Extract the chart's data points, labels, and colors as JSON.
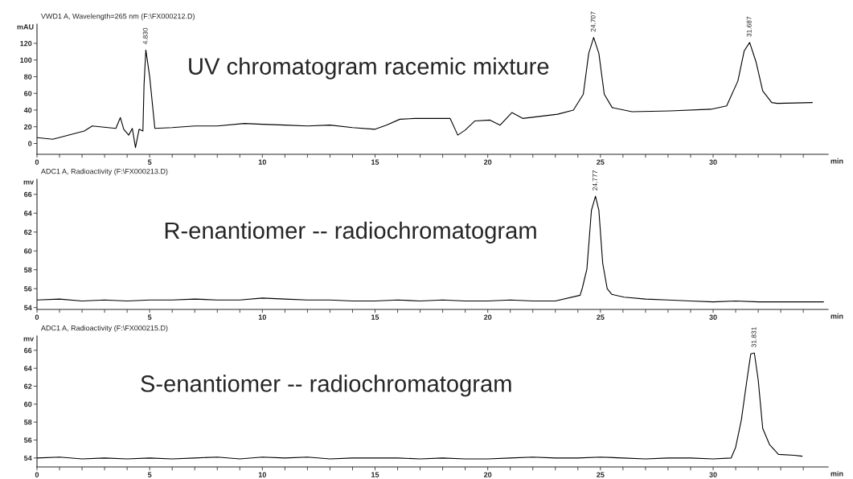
{
  "chart_data": [
    {
      "type": "line",
      "title": "VWD1 A, Wavelength=265 nm (F:\\FX000212.D)",
      "ylabel": "mAU",
      "xlabel": "min",
      "color": "#000000",
      "marker": "none",
      "line_style": "solid",
      "grid": false,
      "x": [
        0,
        0.7,
        2.1,
        2.45,
        3.5,
        3.7,
        3.85,
        4.07,
        4.23,
        4.37,
        4.53,
        4.7,
        4.75,
        4.83,
        5.0,
        5.23,
        6,
        7,
        8,
        9.2,
        10,
        11,
        12,
        13,
        14,
        15,
        15.5,
        16.1,
        16.77,
        18.33,
        18.67,
        19.0,
        19.43,
        20.1,
        20.55,
        21.07,
        21.55,
        23.1,
        23.8,
        24.24,
        24.48,
        24.7,
        24.93,
        25.17,
        25.52,
        26.4,
        28.1,
        29.9,
        30.6,
        31.1,
        31.38,
        31.62,
        31.9,
        32.2,
        32.6,
        32.85,
        34.4
      ],
      "values": [
        7,
        5,
        15,
        21,
        18,
        31,
        17,
        10,
        18,
        -5,
        17,
        15,
        70,
        112,
        80,
        18,
        19,
        21,
        21,
        24,
        23,
        22,
        21,
        22,
        19,
        17,
        22,
        29,
        30,
        30,
        10,
        16,
        27,
        28,
        22,
        37,
        30,
        35,
        40,
        59,
        108,
        127,
        108,
        59,
        43,
        38,
        39,
        41,
        45,
        75,
        111,
        121,
        98,
        63,
        49,
        48,
        49
      ],
      "xlim": [
        0,
        35.1
      ],
      "ylim": [
        -13,
        143
      ],
      "xticks": [
        0,
        {
          "value": 1,
          "label": null
        },
        {
          "value": 2,
          "label": null
        },
        {
          "value": 3,
          "label": null
        },
        {
          "value": 4,
          "label": null
        },
        5,
        {
          "value": 6,
          "label": null
        },
        {
          "value": 7,
          "label": null
        },
        {
          "value": 8,
          "label": null
        },
        {
          "value": 9,
          "label": null
        },
        10,
        {
          "value": 11,
          "label": null
        },
        {
          "value": 12,
          "label": null
        },
        {
          "value": 13,
          "label": null
        },
        {
          "value": 14,
          "label": null
        },
        15,
        {
          "value": 16,
          "label": null
        },
        {
          "value": 17,
          "label": null
        },
        {
          "value": 18,
          "label": null
        },
        {
          "value": 19,
          "label": null
        },
        20,
        {
          "value": 21,
          "label": null
        },
        {
          "value": 22,
          "label": null
        },
        {
          "value": 23,
          "label": null
        },
        {
          "value": 24,
          "label": null
        },
        25,
        {
          "value": 26,
          "label": null
        },
        {
          "value": 27,
          "label": null
        },
        {
          "value": 28,
          "label": null
        },
        {
          "value": 29,
          "label": null
        },
        30,
        {
          "value": 31,
          "label": null
        },
        {
          "value": 32,
          "label": null
        },
        {
          "value": 33,
          "label": null
        },
        {
          "value": 34,
          "label": null
        }
      ],
      "yticks": [
        0,
        20,
        40,
        60,
        80,
        100,
        120
      ],
      "annotations": [
        "UV chromatogram racemic mixture",
        {
          "text": "4.830",
          "x": 4.83,
          "y": 112
        },
        {
          "text": "24.707",
          "x": 24.7,
          "y": 127
        },
        {
          "text": "31.687",
          "x": 31.62,
          "y": 121
        }
      ]
    },
    {
      "type": "line",
      "title": "ADC1 A, Radioactivity (F:\\FX000213.D)",
      "ylabel": "mv",
      "xlabel": "min",
      "color": "#000000",
      "marker": "none",
      "line_style": "solid",
      "grid": false,
      "x": [
        0,
        1,
        2,
        3,
        4,
        5,
        6,
        7,
        8,
        9,
        10,
        11,
        12,
        13,
        14,
        15,
        16,
        17,
        18,
        19,
        20,
        21,
        22,
        23,
        24.1,
        24.2,
        24.4,
        24.6,
        24.78,
        24.93,
        25.1,
        25.3,
        25.5,
        26.05,
        27,
        28,
        29,
        30,
        31,
        32,
        33,
        34,
        34.9
      ],
      "values": [
        54.8,
        54.9,
        54.7,
        54.8,
        54.7,
        54.8,
        54.8,
        54.9,
        54.8,
        54.8,
        55.0,
        54.9,
        54.8,
        54.8,
        54.7,
        54.7,
        54.8,
        54.7,
        54.8,
        54.7,
        54.7,
        54.8,
        54.7,
        54.7,
        55.3,
        56.1,
        58.1,
        64.3,
        65.8,
        64.3,
        58.7,
        56.0,
        55.4,
        55.1,
        54.9,
        54.8,
        54.7,
        54.6,
        54.7,
        54.6,
        54.6,
        54.6,
        54.6
      ],
      "xlim": [
        0,
        35.1
      ],
      "ylim": [
        53.8,
        67.6
      ],
      "xticks": [
        0,
        {
          "value": 1,
          "label": null
        },
        {
          "value": 2,
          "label": null
        },
        {
          "value": 3,
          "label": null
        },
        {
          "value": 4,
          "label": null
        },
        5,
        {
          "value": 6,
          "label": null
        },
        {
          "value": 7,
          "label": null
        },
        {
          "value": 8,
          "label": null
        },
        {
          "value": 9,
          "label": null
        },
        10,
        {
          "value": 11,
          "label": null
        },
        {
          "value": 12,
          "label": null
        },
        {
          "value": 13,
          "label": null
        },
        {
          "value": 14,
          "label": null
        },
        15,
        {
          "value": 16,
          "label": null
        },
        {
          "value": 17,
          "label": null
        },
        {
          "value": 18,
          "label": null
        },
        {
          "value": 19,
          "label": null
        },
        20,
        {
          "value": 21,
          "label": null
        },
        {
          "value": 22,
          "label": null
        },
        {
          "value": 23,
          "label": null
        },
        {
          "value": 24,
          "label": null
        },
        25,
        {
          "value": 26,
          "label": null
        },
        {
          "value": 27,
          "label": null
        },
        {
          "value": 28,
          "label": null
        },
        {
          "value": 29,
          "label": null
        },
        30,
        {
          "value": 31,
          "label": null
        },
        {
          "value": 32,
          "label": null
        },
        {
          "value": 33,
          "label": null
        },
        {
          "value": 34,
          "label": null
        }
      ],
      "yticks": [
        54,
        56,
        58,
        60,
        62,
        64,
        66
      ],
      "annotations": [
        "R-enantiomer -- radiochromatogram",
        {
          "text": "24.777",
          "x": 24.78,
          "y": 65.8
        }
      ]
    },
    {
      "type": "line",
      "title": "ADC1 A, Radioactivity (F:\\FX000215.D)",
      "ylabel": "mv",
      "xlabel": "min",
      "color": "#000000",
      "marker": "none",
      "line_style": "solid",
      "grid": false,
      "x": [
        0,
        1,
        2,
        3,
        4,
        5,
        6,
        7,
        8,
        9,
        10,
        11,
        12,
        13,
        14,
        15,
        16,
        17,
        18,
        19,
        20,
        21,
        22,
        23,
        24,
        25,
        26,
        27,
        28,
        29,
        30,
        30.8,
        31.0,
        31.25,
        31.5,
        31.67,
        31.83,
        32.0,
        32.2,
        32.5,
        32.9,
        33.6,
        33.95
      ],
      "values": [
        54.0,
        54.1,
        53.9,
        54.0,
        53.9,
        54.0,
        53.9,
        54.0,
        54.1,
        53.9,
        54.1,
        54.0,
        54.1,
        53.9,
        54.0,
        54.0,
        54.0,
        53.9,
        54.0,
        53.9,
        53.9,
        54.0,
        54.1,
        54.0,
        54.0,
        54.1,
        54.0,
        53.9,
        54.0,
        54.0,
        53.9,
        54.0,
        55.2,
        58.2,
        62.7,
        65.6,
        65.7,
        62.7,
        57.3,
        55.5,
        54.4,
        54.3,
        54.2
      ],
      "xlim": [
        0,
        35.1
      ],
      "ylim": [
        53.0,
        67.6
      ],
      "xticks": [
        0,
        {
          "value": 1,
          "label": null
        },
        {
          "value": 2,
          "label": null
        },
        {
          "value": 3,
          "label": null
        },
        {
          "value": 4,
          "label": null
        },
        5,
        {
          "value": 6,
          "label": null
        },
        {
          "value": 7,
          "label": null
        },
        {
          "value": 8,
          "label": null
        },
        {
          "value": 9,
          "label": null
        },
        10,
        {
          "value": 11,
          "label": null
        },
        {
          "value": 12,
          "label": null
        },
        {
          "value": 13,
          "label": null
        },
        {
          "value": 14,
          "label": null
        },
        15,
        {
          "value": 16,
          "label": null
        },
        {
          "value": 17,
          "label": null
        },
        {
          "value": 18,
          "label": null
        },
        {
          "value": 19,
          "label": null
        },
        20,
        {
          "value": 21,
          "label": null
        },
        {
          "value": 22,
          "label": null
        },
        {
          "value": 23,
          "label": null
        },
        {
          "value": 24,
          "label": null
        },
        25,
        {
          "value": 26,
          "label": null
        },
        {
          "value": 27,
          "label": null
        },
        {
          "value": 28,
          "label": null
        },
        {
          "value": 29,
          "label": null
        },
        30,
        {
          "value": 31,
          "label": null
        },
        {
          "value": 32,
          "label": null
        },
        {
          "value": 33,
          "label": null
        },
        {
          "value": 34,
          "label": null
        }
      ],
      "yticks": [
        54,
        56,
        58,
        60,
        62,
        64,
        66
      ],
      "annotations": [
        "S-enantiomer -- radiochromatogram",
        {
          "text": "31.831",
          "x": 31.83,
          "y": 65.7
        }
      ]
    }
  ]
}
